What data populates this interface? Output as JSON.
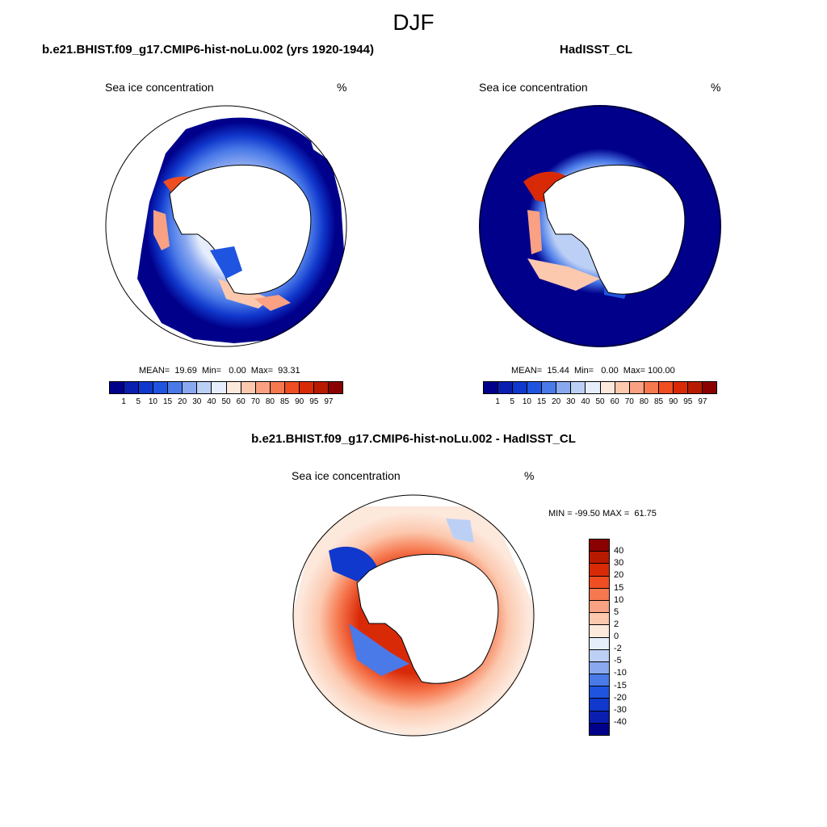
{
  "title": "DJF",
  "panels": [
    {
      "title": "b.e21.BHIST.f09_g17.CMIP6-hist-noLu.002 (yrs 1920-1944)",
      "field": "Sea ice concentration",
      "unit": "%",
      "stats": "MEAN=  19.69  Min=   0.00  Max=  93.31"
    },
    {
      "title": "HadISST_CL",
      "field": "Sea ice concentration",
      "unit": "%",
      "stats": "MEAN=  15.44  Min=   0.00  Max= 100.00"
    },
    {
      "title": "b.e21.BHIST.f09_g17.CMIP6-hist-noLu.002 - HadISST_CL",
      "field": "Sea ice concentration",
      "unit": "%",
      "stats": "MIN = -99.50 MAX =  61.75"
    }
  ],
  "colorbar_abs": {
    "labels": [
      "1",
      "5",
      "10",
      "15",
      "20",
      "30",
      "40",
      "50",
      "60",
      "70",
      "80",
      "85",
      "90",
      "95",
      "97"
    ],
    "colors": [
      "#00008b",
      "#0a1fb0",
      "#1038cc",
      "#1f54e0",
      "#4a7ae8",
      "#8aa8f0",
      "#bcd0f6",
      "#e6eefc",
      "#fde8dc",
      "#fcc8ae",
      "#f9a182",
      "#f6784f",
      "#ef4d22",
      "#d92a08",
      "#b81a00",
      "#8b0000"
    ]
  },
  "colorbar_diff": {
    "labels": [
      "40",
      "30",
      "20",
      "15",
      "10",
      "5",
      "2",
      "0",
      "-2",
      "-5",
      "-10",
      "-15",
      "-20",
      "-30",
      "-40"
    ],
    "colors": [
      "#8b0000",
      "#b81a00",
      "#d92a08",
      "#ef4d22",
      "#f6784f",
      "#f9a182",
      "#fcc8ae",
      "#fde8dc",
      "#e6eefc",
      "#bcd0f6",
      "#8aa8f0",
      "#4a7ae8",
      "#1f54e0",
      "#1038cc",
      "#0a1fb0",
      "#00008b"
    ]
  }
}
